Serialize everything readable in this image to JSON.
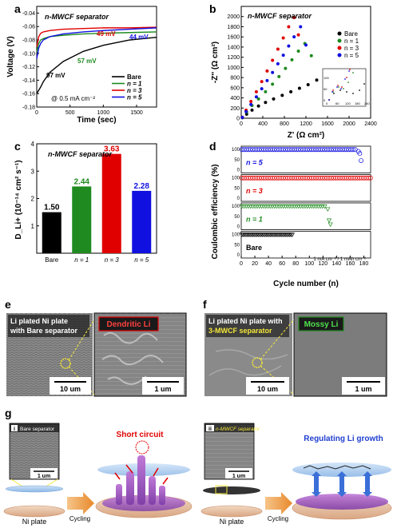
{
  "panels": {
    "a": {
      "letter": "a",
      "title": "n-MWCF separator",
      "xlabel": "Time (sec)",
      "ylabel": "Voltage (V)",
      "condition": "@ 0.5 mA cm⁻²",
      "annot": [
        "49 mV",
        "44 mV",
        "57 mV",
        "97 mV"
      ],
      "legend": [
        "Bare",
        "n = 1",
        "n = 3",
        "n = 5"
      ]
    },
    "b": {
      "letter": "b",
      "title": "n-MWCF separator",
      "xlabel": "Z' (Ω cm²)",
      "ylabel": "-Z'' (Ω cm²)",
      "legend": [
        "Bare",
        "n = 1",
        "n = 3",
        "n = 5"
      ]
    },
    "c": {
      "letter": "c",
      "title": "n-MWCF separator",
      "ylabel": "D_Li+ (10⁻¹⁴ cm² s⁻¹)"
    },
    "d": {
      "letter": "d",
      "xlabel": "Cycle number (n)",
      "ylabel": "Coulombic efficiency (%)",
      "condition": "1 mA cm⁻² / 1 mAh cm⁻²",
      "rows": [
        "n = 5",
        "n = 3",
        "n = 1",
        "Bare"
      ]
    },
    "e": {
      "letter": "e",
      "left_label": "Li plated Ni plate\nwith Bare separator",
      "right_label": "Dendritic Li",
      "scale_left": "10 um",
      "scale_right": "1 um"
    },
    "f": {
      "letter": "f",
      "left_label": "Li plated Ni plate with\n3-MWCF separator",
      "right_label": "Mossy Li",
      "scale_left": "10 um",
      "scale_right": "1 um"
    },
    "g": {
      "letter": "g",
      "i_label": "Bare separator",
      "ii_label": "n-MWCF separator",
      "scale": "1 um",
      "ni_plate": "Ni plate",
      "cycling": "Cycling",
      "short_circuit": "Short circuit",
      "regulating": "Regulating Li growth",
      "roman_i": "i",
      "roman_ii": "ii"
    }
  },
  "colors": {
    "bare": "#000000",
    "n1": "#1f8a1f",
    "n3": "#e00000",
    "n5": "#1010e0"
  },
  "chart_data": [
    {
      "type": "line",
      "panel": "a",
      "xlabel": "Time (sec)",
      "ylabel": "Voltage (V)",
      "xlim": [
        0,
        1800
      ],
      "ylim": [
        -0.18,
        -0.03
      ],
      "x": [
        0,
        30,
        60,
        100,
        200,
        400,
        700,
        1000,
        1400,
        1800
      ],
      "series": [
        {
          "name": "Bare",
          "values": [
            -0.16,
            -0.155,
            -0.15,
            -0.142,
            -0.128,
            -0.112,
            -0.097,
            -0.088,
            -0.08,
            -0.076
          ]
        },
        {
          "name": "n = 1",
          "values": [
            -0.098,
            -0.085,
            -0.08,
            -0.078,
            -0.075,
            -0.073,
            -0.071,
            -0.07,
            -0.069,
            -0.068
          ]
        },
        {
          "name": "n = 3",
          "values": [
            -0.09,
            -0.075,
            -0.07,
            -0.068,
            -0.066,
            -0.064,
            -0.063,
            -0.062,
            -0.062,
            -0.061
          ]
        },
        {
          "name": "n = 5",
          "values": [
            -0.108,
            -0.092,
            -0.085,
            -0.08,
            -0.075,
            -0.071,
            -0.068,
            -0.066,
            -0.064,
            -0.062
          ]
        }
      ]
    },
    {
      "type": "scatter",
      "panel": "b",
      "xlabel": "Z' (Ω cm²)",
      "ylabel": "-Z'' (Ω cm²)",
      "xlim": [
        0,
        2400
      ],
      "ylim": [
        0,
        2200
      ],
      "series": [
        {
          "name": "Bare",
          "x": [
            20,
            100,
            200,
            320,
            450,
            600,
            760,
            920,
            1080,
            1240,
            1400,
            1560,
            1700
          ],
          "y": [
            10,
            80,
            160,
            240,
            310,
            380,
            450,
            520,
            590,
            660,
            750,
            870,
            920
          ]
        },
        {
          "name": "n = 1",
          "x": [
            20,
            100,
            200,
            320,
            450,
            580,
            700,
            820,
            940,
            1060,
            1180,
            1300
          ],
          "y": [
            15,
            120,
            250,
            380,
            520,
            670,
            820,
            980,
            1150,
            1320,
            1470,
            1230
          ]
        },
        {
          "name": "n = 3",
          "x": [
            20,
            90,
            180,
            280,
            380,
            480,
            580,
            680,
            780,
            880,
            980,
            1060
          ],
          "y": [
            20,
            160,
            330,
            520,
            720,
            930,
            1140,
            1360,
            1580,
            1800,
            1980,
            1640
          ]
        },
        {
          "name": "n = 5",
          "x": [
            20,
            90,
            180,
            280,
            380,
            480,
            580,
            680,
            780,
            880,
            980,
            1100,
            1200
          ],
          "y": [
            15,
            130,
            270,
            420,
            580,
            740,
            900,
            1070,
            1240,
            1420,
            1600,
            1800,
            1440
          ]
        }
      ]
    },
    {
      "type": "bar",
      "panel": "c",
      "categories": [
        "Bare",
        "n = 1",
        "n = 3",
        "n = 5"
      ],
      "values": [
        1.5,
        2.44,
        3.63,
        2.28
      ],
      "ylim": [
        0,
        4
      ],
      "ylabel": "D_Li+ (10⁻¹⁴ cm² s⁻¹)",
      "labels": [
        "1.50",
        "2.44",
        "3.63",
        "2.28"
      ]
    },
    {
      "type": "scatter",
      "panel": "d",
      "xlabel": "Cycle number (n)",
      "ylabel": "Coulombic efficiency (%)",
      "xlim": [
        0,
        190
      ],
      "series": [
        {
          "name": "n = 5",
          "cycles_stable": 170,
          "end_values": [
            90,
            80,
            45
          ]
        },
        {
          "name": "n = 3",
          "cycles_stable": 190
        },
        {
          "name": "n = 1",
          "cycles_stable": 125,
          "end_values": [
            85,
            30,
            10
          ]
        },
        {
          "name": "Bare",
          "cycles_stable": 75
        }
      ]
    }
  ]
}
